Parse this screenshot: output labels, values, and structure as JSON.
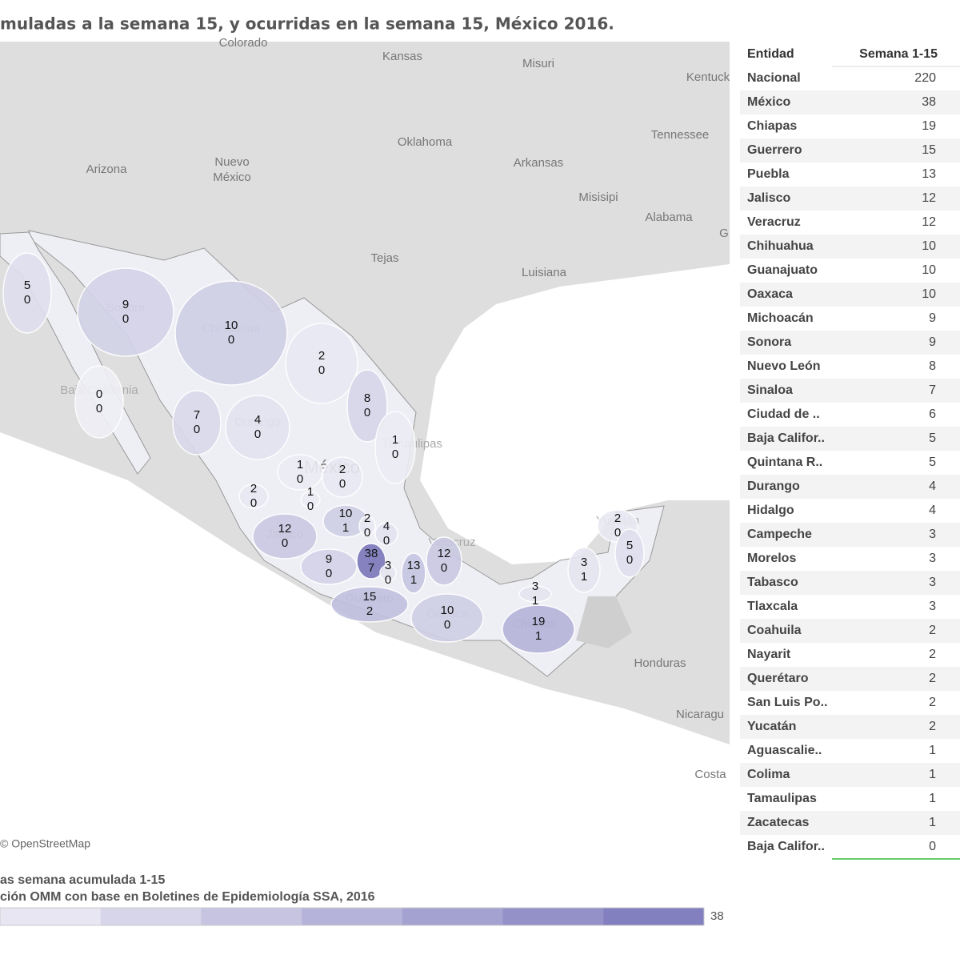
{
  "title": "muladas a la semana 15, y ocurridas en la semana 15, México 2016.",
  "attribution": "© OpenStreetMap",
  "map_labels": [
    "Colorado",
    "Kansas",
    "Misuri",
    "Kentuck",
    "Tennessee",
    "Oklahoma",
    "Arkansas",
    "Arizona",
    "Nuevo",
    "México",
    "Misisipi",
    "Alabama",
    "G",
    "Tejas",
    "Luisiana",
    "Honduras",
    "Nicaragu",
    "Costa",
    "México",
    "Baja California",
    "Sonora",
    "Chihuahua",
    "Tamaulipas",
    "Durango",
    "Jalisco",
    "Guerrero",
    "Oaxaca",
    "Chiapas",
    "Yucatán",
    "Veracruz"
  ],
  "states": [
    {
      "cumulative": 5,
      "week15": 0
    },
    {
      "cumulative": 9,
      "week15": 0
    },
    {
      "cumulative": 10,
      "week15": 0
    },
    {
      "cumulative": 2,
      "week15": 0
    },
    {
      "cumulative": 0,
      "week15": 0
    },
    {
      "cumulative": 8,
      "week15": 0
    },
    {
      "cumulative": 7,
      "week15": 0
    },
    {
      "cumulative": 4,
      "week15": 0
    },
    {
      "cumulative": 1,
      "week15": 0
    },
    {
      "cumulative": 1,
      "week15": 0
    },
    {
      "cumulative": 2,
      "week15": 0
    },
    {
      "cumulative": 2,
      "week15": 0
    },
    {
      "cumulative": 1,
      "week15": 0
    },
    {
      "cumulative": 10,
      "week15": 1
    },
    {
      "cumulative": 2,
      "week15": 0
    },
    {
      "cumulative": 4,
      "week15": 0
    },
    {
      "cumulative": 12,
      "week15": 0
    },
    {
      "cumulative": 2,
      "week15": 0
    },
    {
      "cumulative": 5,
      "week15": 0
    },
    {
      "cumulative": 9,
      "week15": 0
    },
    {
      "cumulative": 38,
      "week15": 7
    },
    {
      "cumulative": 3,
      "week15": 0
    },
    {
      "cumulative": 13,
      "week15": 1
    },
    {
      "cumulative": 12,
      "week15": 0
    },
    {
      "cumulative": 3,
      "week15": 1
    },
    {
      "cumulative": 3,
      "week15": 1
    },
    {
      "cumulative": 15,
      "week15": 2
    },
    {
      "cumulative": 10,
      "week15": 0
    },
    {
      "cumulative": 19,
      "week15": 1
    }
  ],
  "table": {
    "headers": [
      "Entidad",
      "Semana 1-15"
    ],
    "rows": [
      [
        "Nacional",
        220
      ],
      [
        "México",
        38
      ],
      [
        "Chiapas",
        19
      ],
      [
        "Guerrero",
        15
      ],
      [
        "Puebla",
        13
      ],
      [
        "Jalisco",
        12
      ],
      [
        "Veracruz",
        12
      ],
      [
        "Chihuahua",
        10
      ],
      [
        "Guanajuato",
        10
      ],
      [
        "Oaxaca",
        10
      ],
      [
        "Michoacán",
        9
      ],
      [
        "Sonora",
        9
      ],
      [
        "Nuevo León",
        8
      ],
      [
        "Sinaloa",
        7
      ],
      [
        "Ciudad de ..",
        6
      ],
      [
        "Baja Califor..",
        5
      ],
      [
        "Quintana R..",
        5
      ],
      [
        "Durango",
        4
      ],
      [
        "Hidalgo",
        4
      ],
      [
        "Campeche",
        3
      ],
      [
        "Morelos",
        3
      ],
      [
        "Tabasco",
        3
      ],
      [
        "Tlaxcala",
        3
      ],
      [
        "Coahuila",
        2
      ],
      [
        "Nayarit",
        2
      ],
      [
        "Querétaro",
        2
      ],
      [
        "San Luis Po..",
        2
      ],
      [
        "Yucatán",
        2
      ],
      [
        "Aguascalie..",
        1
      ],
      [
        "Colima",
        1
      ],
      [
        "Tamaulipas",
        1
      ],
      [
        "Zacatecas",
        1
      ],
      [
        "Baja Califor..",
        0
      ]
    ]
  },
  "legend": {
    "title": "as semana acumulada 1-15",
    "source": "ción OMM con base en Boletines de Epidemiología SSA, 2016",
    "max": 38
  }
}
